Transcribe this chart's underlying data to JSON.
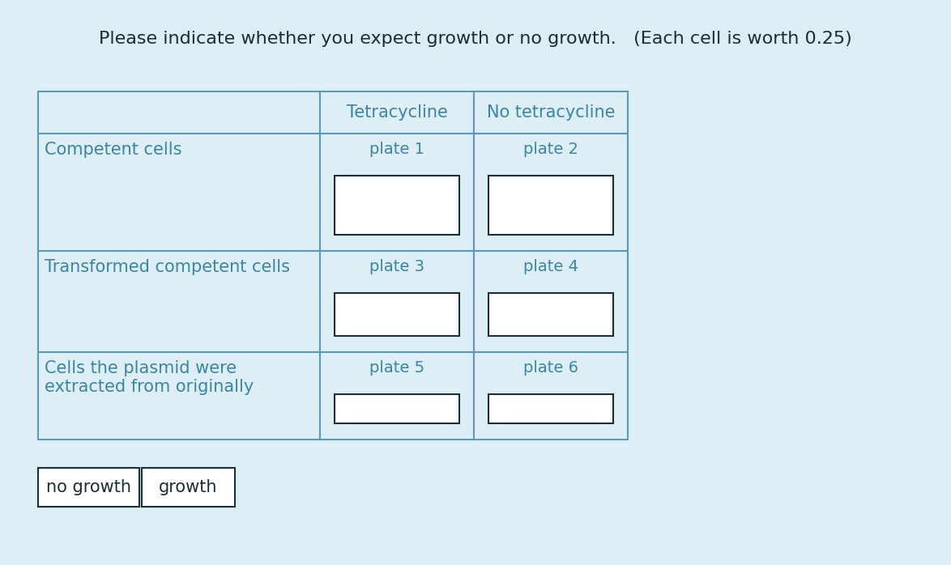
{
  "title": "Please indicate whether you expect growth or no growth.   (Each cell is worth 0.25)",
  "background_color": "#ddeef4",
  "outer_bg": "#e8f4f8",
  "table_bg": "#ddeef4",
  "cell_bg": "#ffffff",
  "text_color": "#3a85a8",
  "title_color": "#1a2e35",
  "border_color": "#5a9ab5",
  "inner_box_color": "#1a2e35",
  "legend_text_color": "#1a2e35",
  "legend_border_color": "#1a2e35",
  "col_headers": [
    "Tetracycline",
    "No tetracycline"
  ],
  "row_labels": [
    "Competent cells",
    "Transformed competent cells",
    "Cells the plasmid were\nextracted from originally"
  ],
  "plate_labels": [
    [
      "plate 1",
      "plate 2"
    ],
    [
      "plate 3",
      "plate 4"
    ],
    [
      "plate 5",
      "plate 6"
    ]
  ],
  "legend_labels": [
    "no growth",
    "growth"
  ],
  "title_fontsize": 16,
  "header_fontsize": 15,
  "label_fontsize": 15,
  "plate_fontsize": 14,
  "legend_fontsize": 15
}
